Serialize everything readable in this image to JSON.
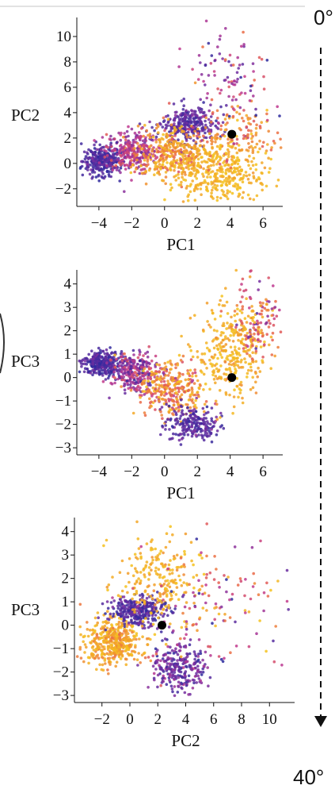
{
  "temperature_scale": {
    "top_label": "0°",
    "bottom_label": "40°",
    "gradient_stops": [
      "#2d2a9e",
      "#7a2fa0",
      "#c0398f",
      "#e8614d",
      "#f29a2c",
      "#f4c21f"
    ]
  },
  "chart_data": [
    {
      "type": "scatter",
      "title": "",
      "xlabel": "PC1",
      "ylabel": "PC2",
      "xlim": [
        -5.2,
        7.2
      ],
      "ylim": [
        -3.2,
        11.5
      ],
      "xticks": [
        -4,
        -2,
        0,
        2,
        4,
        6
      ],
      "yticks": [
        -2,
        0,
        2,
        4,
        6,
        8,
        10
      ],
      "grid": false,
      "highlight_point": {
        "x": 4.1,
        "y": 2.3,
        "color": "#000000"
      },
      "point_clusters": [
        {
          "cx": -3.8,
          "cy": 0.2,
          "sx": 0.6,
          "sy": 0.6,
          "n": 300,
          "t": 0.08,
          "tspread": 0.06
        },
        {
          "cx": -2.0,
          "cy": 1.0,
          "sx": 0.8,
          "sy": 0.8,
          "n": 300,
          "t": 0.35,
          "tspread": 0.12
        },
        {
          "cx": 1.5,
          "cy": 3.0,
          "sx": 0.8,
          "sy": 0.7,
          "n": 300,
          "t": 0.12,
          "tspread": 0.06
        },
        {
          "cx": 0.5,
          "cy": 0.8,
          "sx": 1.0,
          "sy": 1.0,
          "n": 330,
          "t": 0.8,
          "tspread": 0.15
        },
        {
          "cx": 3.0,
          "cy": -0.8,
          "sx": 1.4,
          "sy": 1.2,
          "n": 360,
          "t": 0.93,
          "tspread": 0.06
        },
        {
          "cx": 4.5,
          "cy": 2.0,
          "sx": 1.2,
          "sy": 1.3,
          "n": 160,
          "t": 0.78,
          "tspread": 0.15
        },
        {
          "cx": 4.0,
          "cy": 6.5,
          "sx": 1.3,
          "sy": 2.0,
          "n": 110,
          "t": 0.3,
          "tspread": 0.2
        }
      ]
    },
    {
      "type": "scatter",
      "title": "",
      "xlabel": "PC1",
      "ylabel": "PC3",
      "xlim": [
        -5.2,
        7.2
      ],
      "ylim": [
        -3.2,
        4.6
      ],
      "xticks": [
        -4,
        -2,
        0,
        2,
        4,
        6
      ],
      "yticks": [
        -3,
        -2,
        -1,
        0,
        1,
        2,
        3,
        4
      ],
      "grid": false,
      "highlight_point": {
        "x": 4.1,
        "y": 0.0,
        "color": "#000000"
      },
      "point_clusters": [
        {
          "cx": -3.8,
          "cy": 0.6,
          "sx": 0.6,
          "sy": 0.25,
          "n": 320,
          "t": 0.08,
          "tspread": 0.06
        },
        {
          "cx": -1.8,
          "cy": 0.2,
          "sx": 0.7,
          "sy": 0.4,
          "n": 280,
          "t": 0.3,
          "tspread": 0.15
        },
        {
          "cx": 0.3,
          "cy": -0.5,
          "sx": 1.0,
          "sy": 0.6,
          "n": 320,
          "t": 0.75,
          "tspread": 0.18
        },
        {
          "cx": 1.8,
          "cy": -2.0,
          "sx": 0.8,
          "sy": 0.4,
          "n": 220,
          "t": 0.12,
          "tspread": 0.06
        },
        {
          "cx": 4.0,
          "cy": 1.0,
          "sx": 1.0,
          "sy": 1.0,
          "n": 300,
          "t": 0.9,
          "tspread": 0.08
        },
        {
          "cx": 5.6,
          "cy": 2.6,
          "sx": 0.7,
          "sy": 0.9,
          "n": 140,
          "t": 0.6,
          "tspread": 0.25
        }
      ]
    },
    {
      "type": "scatter",
      "title": "",
      "xlabel": "PC2",
      "ylabel": "PC3",
      "xlim": [
        -3.8,
        11.8
      ],
      "ylim": [
        -3.2,
        4.6
      ],
      "xticks": [
        -2,
        0,
        2,
        4,
        6,
        8,
        10
      ],
      "yticks": [
        -3,
        -2,
        -1,
        0,
        1,
        2,
        3,
        4
      ],
      "grid": false,
      "highlight_point": {
        "x": 2.3,
        "y": 0.0,
        "color": "#000000"
      },
      "point_clusters": [
        {
          "cx": -1.2,
          "cy": -0.7,
          "sx": 1.0,
          "sy": 0.5,
          "n": 420,
          "t": 0.85,
          "tspread": 0.1
        },
        {
          "cx": 0.5,
          "cy": 0.6,
          "sx": 1.0,
          "sy": 0.3,
          "n": 320,
          "t": 0.1,
          "tspread": 0.06
        },
        {
          "cx": 3.5,
          "cy": -1.8,
          "sx": 1.0,
          "sy": 0.5,
          "n": 260,
          "t": 0.18,
          "tspread": 0.1
        },
        {
          "cx": 2.0,
          "cy": 1.8,
          "sx": 1.5,
          "sy": 1.0,
          "n": 230,
          "t": 0.9,
          "tspread": 0.08
        },
        {
          "cx": 6.0,
          "cy": 1.0,
          "sx": 2.5,
          "sy": 1.5,
          "n": 130,
          "t": 0.5,
          "tspread": 0.3
        }
      ]
    }
  ]
}
